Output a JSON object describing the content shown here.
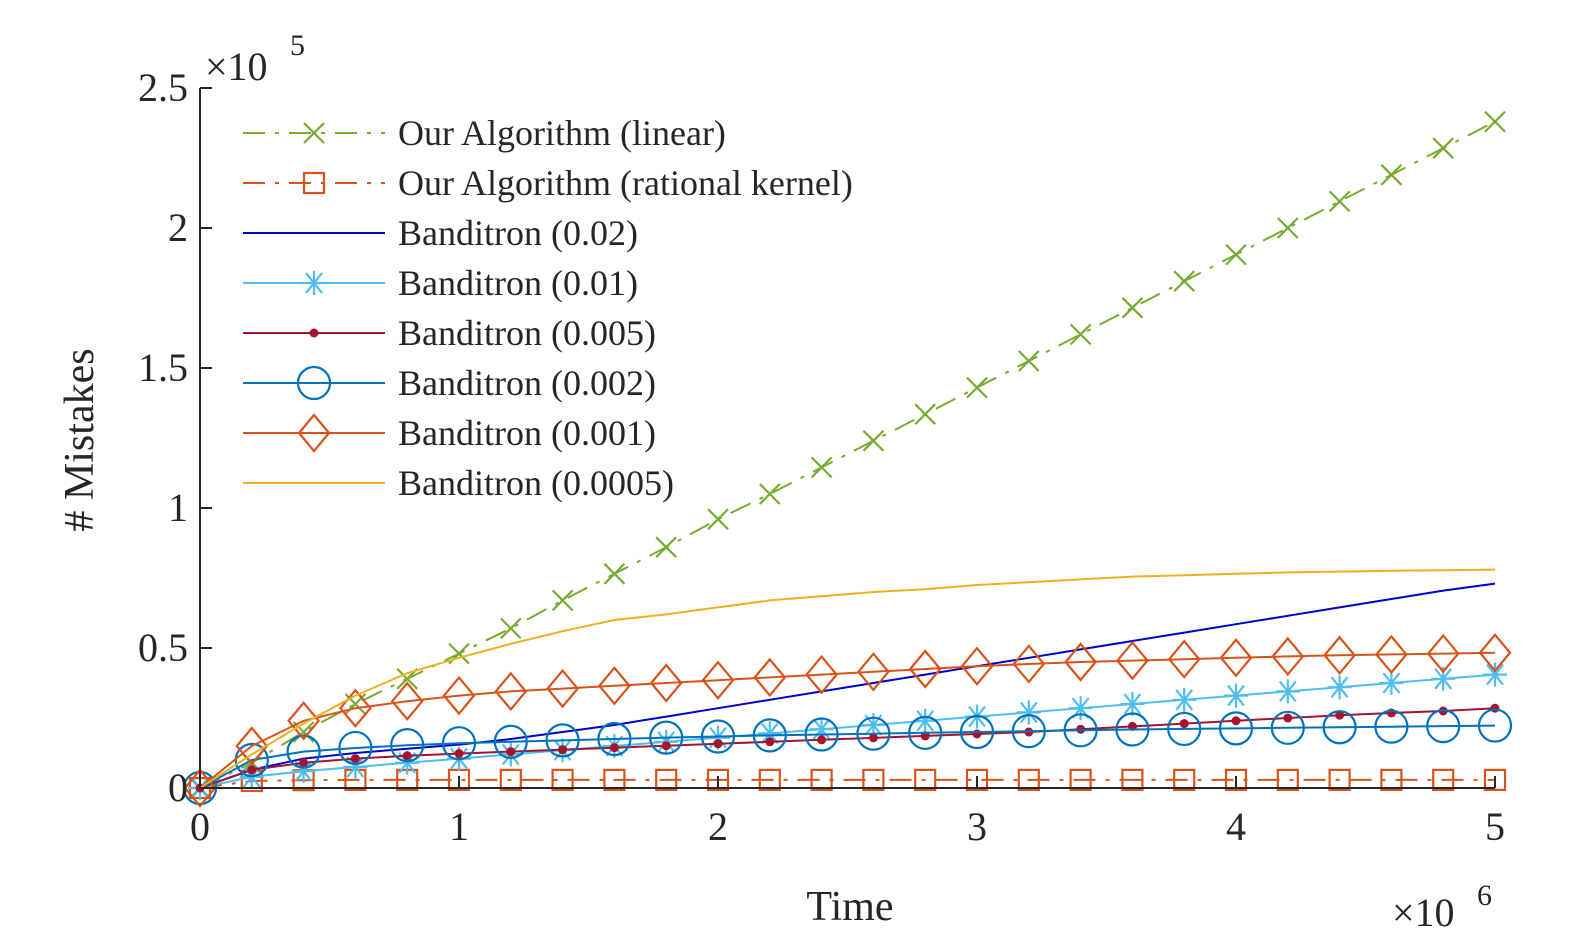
{
  "chart_data": {
    "type": "line",
    "title": "",
    "xlabel": "Time",
    "ylabel": "# Mistakes",
    "x_multiplier": "×10^6",
    "y_multiplier": "×10^5",
    "x_exponent": "6",
    "y_exponent": "5",
    "x_unit": 1000000,
    "y_unit": 100000,
    "xlim": [
      0,
      5000000
    ],
    "ylim": [
      0,
      250000
    ],
    "x_ticks": [
      0,
      1000000,
      2000000,
      3000000,
      4000000,
      5000000
    ],
    "x_tick_labels": [
      "0",
      "1",
      "2",
      "3",
      "4",
      "5"
    ],
    "y_ticks": [
      0,
      50000,
      100000,
      150000,
      200000,
      250000
    ],
    "y_tick_labels": [
      "0",
      "0.5",
      "1",
      "1.5",
      "2",
      "2.5"
    ],
    "grid": false,
    "legend_position": "top-left",
    "x": [
      0,
      200000,
      400000,
      600000,
      800000,
      1000000,
      1200000,
      1400000,
      1600000,
      1800000,
      2000000,
      2200000,
      2400000,
      2600000,
      2800000,
      3000000,
      3200000,
      3400000,
      3600000,
      3800000,
      4000000,
      4200000,
      4400000,
      4600000,
      4800000,
      5000000
    ],
    "series": [
      {
        "name": "Our Algorithm (linear)",
        "color": "#77ac30",
        "line_style": "dashdot",
        "marker": "x",
        "values": [
          0,
          9000,
          20000,
          30000,
          39000,
          48000,
          57000,
          67000,
          76500,
          86000,
          96000,
          105000,
          114500,
          124000,
          133500,
          143000,
          152500,
          162000,
          171500,
          181000,
          190500,
          200000,
          209500,
          219000,
          228500,
          238000
        ]
      },
      {
        "name": "Our Algorithm (rational kernel)",
        "color": "#d95319",
        "line_style": "dashdot",
        "marker": "square",
        "values": [
          0,
          2500,
          2800,
          2900,
          2900,
          2900,
          2900,
          2900,
          2900,
          2900,
          2900,
          2900,
          2900,
          2900,
          2900,
          2900,
          2900,
          2900,
          2900,
          2900,
          2900,
          2900,
          2900,
          2900,
          2900,
          2900
        ]
      },
      {
        "name": "Banditron (0.02)",
        "color": "#0000cc",
        "line_style": "solid",
        "marker": "none",
        "values": [
          0,
          6500,
          10500,
          12500,
          14000,
          15500,
          17500,
          20000,
          22500,
          25500,
          28500,
          31500,
          34500,
          37500,
          40500,
          43500,
          46500,
          49500,
          52500,
          55500,
          58500,
          61500,
          64500,
          67500,
          70500,
          73000
        ]
      },
      {
        "name": "Banditron (0.01)",
        "color": "#4dbeee",
        "line_style": "solid",
        "marker": "asterisk",
        "values": [
          0,
          4000,
          6000,
          7500,
          9000,
          10500,
          12000,
          13500,
          15000,
          16500,
          18000,
          19500,
          21000,
          22500,
          24000,
          25500,
          27000,
          28500,
          30000,
          31500,
          33000,
          34500,
          36000,
          37500,
          39000,
          40500
        ]
      },
      {
        "name": "Banditron (0.005)",
        "color": "#a2142f",
        "line_style": "solid",
        "marker": "dot",
        "values": [
          0,
          6500,
          9000,
          10500,
          11500,
          12300,
          13000,
          13700,
          14400,
          15100,
          15800,
          16500,
          17200,
          17900,
          18600,
          19300,
          20000,
          21000,
          22000,
          23000,
          24000,
          25000,
          26000,
          26800,
          27500,
          28500
        ]
      },
      {
        "name": "Banditron (0.002)",
        "color": "#0072bd",
        "line_style": "solid",
        "marker": "circle",
        "values": [
          0,
          10000,
          13000,
          14300,
          15300,
          16000,
          16500,
          17000,
          17500,
          18000,
          18400,
          18800,
          19100,
          19400,
          19700,
          20000,
          20300,
          20600,
          20900,
          21100,
          21300,
          21500,
          21700,
          21900,
          22100,
          22300
        ]
      },
      {
        "name": "Banditron (0.001)",
        "color": "#d95319",
        "line_style": "solid",
        "marker": "diamond",
        "values": [
          0,
          15000,
          24000,
          28500,
          31000,
          33000,
          34500,
          35500,
          36500,
          37500,
          38500,
          39500,
          40500,
          41500,
          42500,
          43500,
          44300,
          45000,
          45500,
          46000,
          46500,
          47000,
          47400,
          47700,
          48000,
          48300
        ]
      },
      {
        "name": "Banditron (0.0005)",
        "color": "#edb120",
        "line_style": "solid",
        "marker": "none",
        "values": [
          0,
          12000,
          23000,
          33000,
          41000,
          46500,
          51500,
          56000,
          60000,
          62000,
          64500,
          67000,
          68500,
          70000,
          71000,
          72500,
          73500,
          74500,
          75500,
          76000,
          76500,
          77000,
          77300,
          77600,
          77800,
          78000
        ]
      }
    ]
  }
}
